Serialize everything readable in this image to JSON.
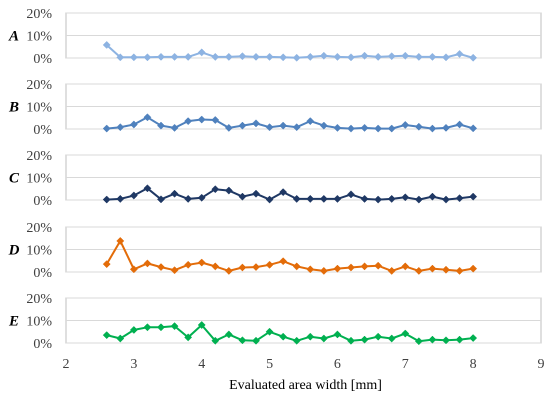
{
  "chart_data": {
    "type": "line",
    "xlabel": "Evaluated area width [mm]",
    "xlim": [
      2,
      9
    ],
    "xticks": [
      "2",
      "3",
      "4",
      "5",
      "6",
      "7",
      "8",
      "9"
    ],
    "ylim": [
      0,
      20
    ],
    "yticks": [
      "0%",
      "10%",
      "20%"
    ],
    "x": [
      2.6,
      2.8,
      3.0,
      3.2,
      3.4,
      3.6,
      3.8,
      4.0,
      4.2,
      4.4,
      4.6,
      4.8,
      5.0,
      5.2,
      5.4,
      5.6,
      5.8,
      6.0,
      6.2,
      6.4,
      6.6,
      6.8,
      7.0,
      7.2,
      7.4,
      7.6,
      7.8,
      8.0
    ],
    "series": [
      {
        "name": "A",
        "color": "#8db3e2",
        "values": [
          5.8,
          0.3,
          0.3,
          0.3,
          0.5,
          0.5,
          0.5,
          2.5,
          0.5,
          0.5,
          0.8,
          0.5,
          0.5,
          0.3,
          0.1,
          0.5,
          1.0,
          0.5,
          0.3,
          1.0,
          0.5,
          0.8,
          1.0,
          0.5,
          0.5,
          0.3,
          1.8,
          0.1
        ]
      },
      {
        "name": "B",
        "color": "#4f81bd",
        "values": [
          0.2,
          0.8,
          2.0,
          5.2,
          1.5,
          0.5,
          3.5,
          4.2,
          4.0,
          0.5,
          1.5,
          2.5,
          0.8,
          1.5,
          0.8,
          3.5,
          1.5,
          0.5,
          0.2,
          0.5,
          0.2,
          0.2,
          1.8,
          1.0,
          0.2,
          0.5,
          2.0,
          0.3
        ]
      },
      {
        "name": "C",
        "color": "#1f3864",
        "values": [
          0.2,
          0.5,
          2.0,
          5.2,
          0.3,
          2.8,
          0.5,
          1.0,
          4.8,
          4.2,
          1.5,
          2.8,
          0.2,
          3.5,
          0.5,
          0.5,
          0.5,
          0.5,
          2.5,
          0.5,
          0.2,
          0.5,
          1.2,
          0.2,
          1.5,
          0.2,
          0.8,
          1.5
        ]
      },
      {
        "name": "D",
        "color": "#e36c09",
        "values": [
          3.5,
          13.8,
          1.2,
          3.8,
          2.2,
          0.8,
          3.2,
          4.2,
          2.5,
          0.5,
          2.0,
          2.2,
          3.2,
          4.8,
          2.5,
          1.2,
          0.5,
          1.5,
          2.0,
          2.5,
          2.8,
          0.5,
          2.5,
          0.5,
          1.5,
          1.0,
          0.5,
          1.5
        ]
      },
      {
        "name": "E",
        "color": "#00b050",
        "values": [
          3.5,
          2.0,
          5.8,
          7.0,
          7.0,
          7.5,
          2.5,
          8.0,
          1.0,
          3.8,
          1.2,
          1.0,
          5.0,
          2.8,
          1.0,
          2.8,
          2.0,
          3.8,
          1.0,
          1.5,
          2.8,
          2.0,
          4.2,
          0.8,
          1.5,
          1.2,
          1.5,
          2.2
        ]
      }
    ]
  }
}
